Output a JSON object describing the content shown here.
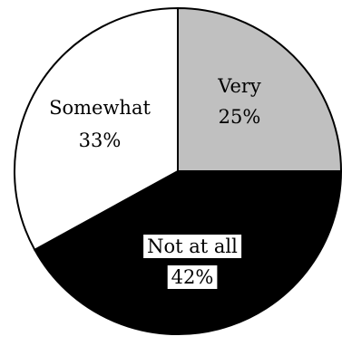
{
  "chart_data": {
    "type": "pie",
    "slices": [
      {
        "label": "Very",
        "value": 25,
        "percent_label": "25%",
        "color": "#c0c0c0",
        "text_color": "#000000"
      },
      {
        "label": "Not at all",
        "value": 42,
        "percent_label": "42%",
        "color": "#000000",
        "text_color": "#000000",
        "label_boxed": true
      },
      {
        "label": "Somewhat",
        "value": 33,
        "percent_label": "33%",
        "color": "#ffffff",
        "text_color": "#000000"
      }
    ],
    "start_angle_deg": 0,
    "direction": "clockwise",
    "legend": "none",
    "outline_color": "#000000"
  }
}
